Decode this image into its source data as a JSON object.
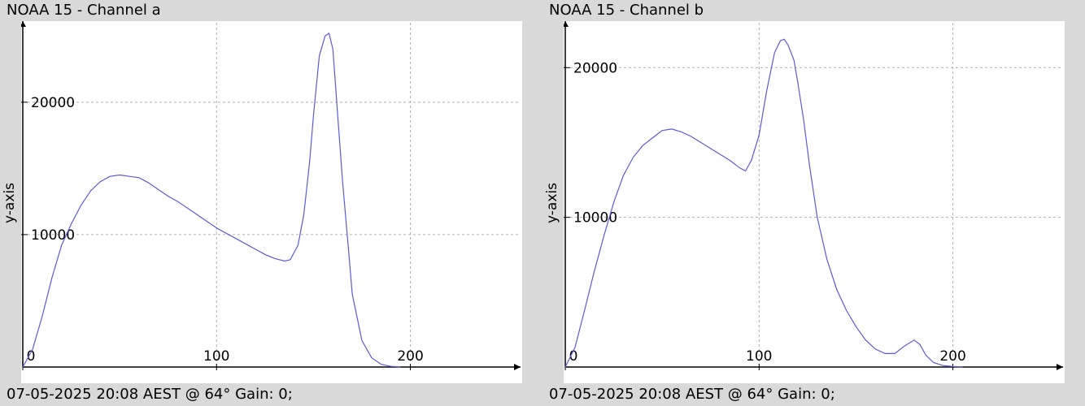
{
  "panels": [
    {
      "title": "NOAA 15 - Channel a",
      "ylabel": "y-axis",
      "footer": "07-05-2025 20:08 AEST @ 64° Gain: 0;"
    },
    {
      "title": "NOAA 15 - Channel b",
      "ylabel": "y-axis",
      "footer": "07-05-2025 20:08 AEST @ 64° Gain: 0;"
    }
  ],
  "colors": {
    "line": "#5b5bd6",
    "grid": "#b0b0b0",
    "axis": "#000000",
    "plot_bg": "#ffffff",
    "page_bg": "#d9d9d9"
  },
  "chart_data": [
    {
      "type": "line",
      "title": "NOAA 15 - Channel a",
      "xlabel": "",
      "ylabel": "y-axis",
      "xlim": [
        0,
        256
      ],
      "ylim": [
        0,
        26000
      ],
      "xticks": [
        0,
        100,
        200
      ],
      "yticks": [
        10000,
        20000
      ],
      "grid": true,
      "series": [
        {
          "x": [
            0,
            5,
            10,
            15,
            20,
            25,
            30,
            35,
            40,
            45,
            50,
            55,
            60,
            65,
            70,
            75,
            80,
            85,
            90,
            95,
            100,
            105,
            110,
            115,
            120,
            125,
            130,
            135,
            138,
            142,
            145,
            148,
            150,
            153,
            156,
            158,
            160,
            162,
            165,
            168,
            170,
            175,
            180,
            185,
            190,
            195
          ],
          "y": [
            0,
            1300,
            3800,
            6700,
            9200,
            10800,
            12200,
            13300,
            14000,
            14400,
            14500,
            14400,
            14300,
            13900,
            13400,
            12900,
            12500,
            12000,
            11500,
            11000,
            10500,
            10100,
            9700,
            9300,
            8900,
            8500,
            8200,
            8000,
            8100,
            9200,
            11500,
            15500,
            19000,
            23500,
            25000,
            25200,
            24000,
            20000,
            14000,
            9000,
            5500,
            2000,
            700,
            200,
            50,
            0
          ]
        }
      ]
    },
    {
      "type": "line",
      "title": "NOAA 15 - Channel b",
      "xlabel": "",
      "ylabel": "y-axis",
      "xlim": [
        0,
        256
      ],
      "ylim": [
        0,
        23000
      ],
      "xticks": [
        0,
        100,
        200
      ],
      "yticks": [
        10000,
        20000
      ],
      "grid": true,
      "series": [
        {
          "x": [
            0,
            5,
            10,
            15,
            20,
            25,
            30,
            35,
            40,
            45,
            50,
            55,
            60,
            65,
            70,
            75,
            80,
            85,
            90,
            93,
            96,
            100,
            104,
            108,
            111,
            113,
            115,
            118,
            120,
            123,
            126,
            130,
            135,
            140,
            145,
            150,
            155,
            160,
            165,
            170,
            175,
            180,
            183,
            186,
            190,
            195,
            200,
            205
          ],
          "y": [
            0,
            1300,
            3800,
            6400,
            8800,
            11000,
            12800,
            14000,
            14800,
            15300,
            15800,
            15900,
            15700,
            15400,
            15000,
            14600,
            14200,
            13800,
            13300,
            13100,
            13800,
            15500,
            18500,
            21000,
            21800,
            21900,
            21500,
            20500,
            19000,
            16500,
            13500,
            10000,
            7200,
            5200,
            3800,
            2700,
            1800,
            1200,
            900,
            900,
            1400,
            1800,
            1500,
            800,
            300,
            100,
            30,
            0
          ]
        }
      ]
    }
  ]
}
